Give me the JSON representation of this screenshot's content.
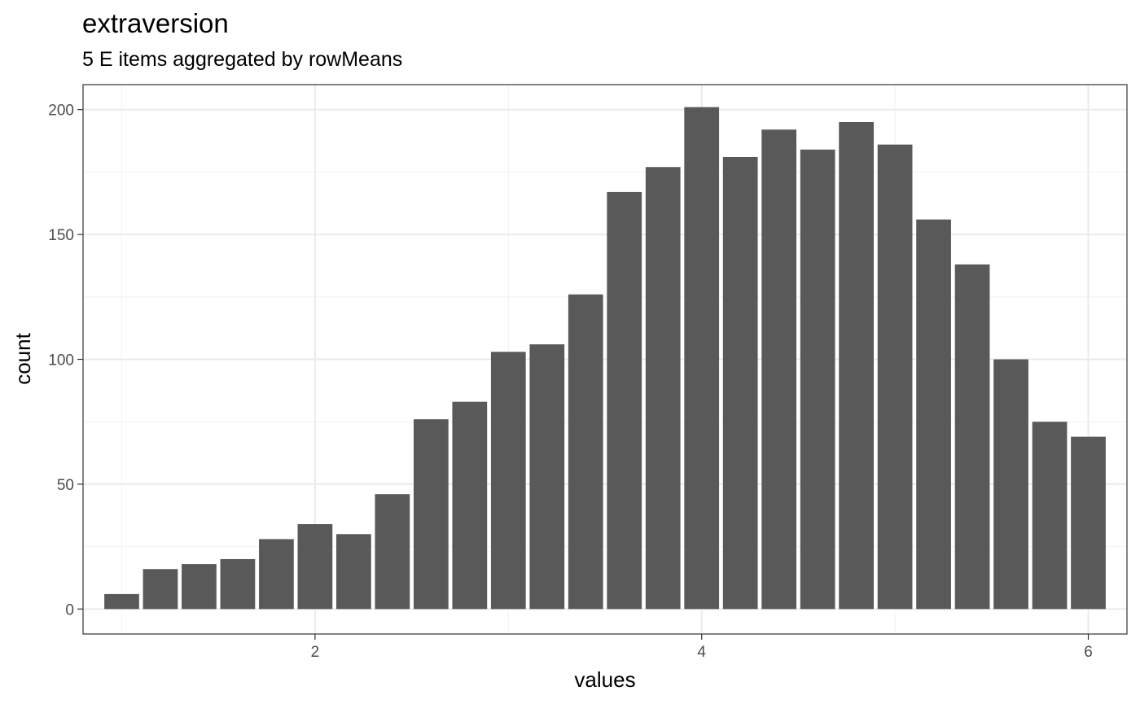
{
  "chart_data": {
    "type": "bar",
    "title": "extraversion",
    "subtitle": "5 E items aggregated by rowMeans",
    "xlabel": "values",
    "ylabel": "count",
    "x": [
      1.0,
      1.2,
      1.4,
      1.6,
      1.8,
      2.0,
      2.2,
      2.4,
      2.6,
      2.8,
      3.0,
      3.2,
      3.4,
      3.6,
      3.8,
      4.0,
      4.2,
      4.4,
      4.6,
      4.8,
      5.0,
      5.2,
      5.4,
      5.6,
      5.8,
      6.0
    ],
    "values": [
      6,
      16,
      18,
      20,
      28,
      34,
      30,
      46,
      76,
      83,
      103,
      106,
      126,
      167,
      177,
      201,
      181,
      192,
      184,
      195,
      186,
      156,
      138,
      100,
      75,
      69
    ],
    "bar_width": 0.18,
    "xlim": [
      0.8,
      6.2
    ],
    "ylim": [
      -10,
      210
    ],
    "x_ticks": [
      2,
      4,
      6
    ],
    "x_tick_labels": [
      "2",
      "4",
      "6"
    ],
    "x_minor_ticks": [
      1,
      3,
      5
    ],
    "y_ticks": [
      0,
      50,
      100,
      150,
      200
    ],
    "y_tick_labels": [
      "0",
      "50",
      "100",
      "150",
      "200"
    ],
    "y_minor_ticks": [
      25,
      75,
      125,
      175
    ],
    "grid": true,
    "bar_color": "#595959",
    "theme": "bw"
  }
}
